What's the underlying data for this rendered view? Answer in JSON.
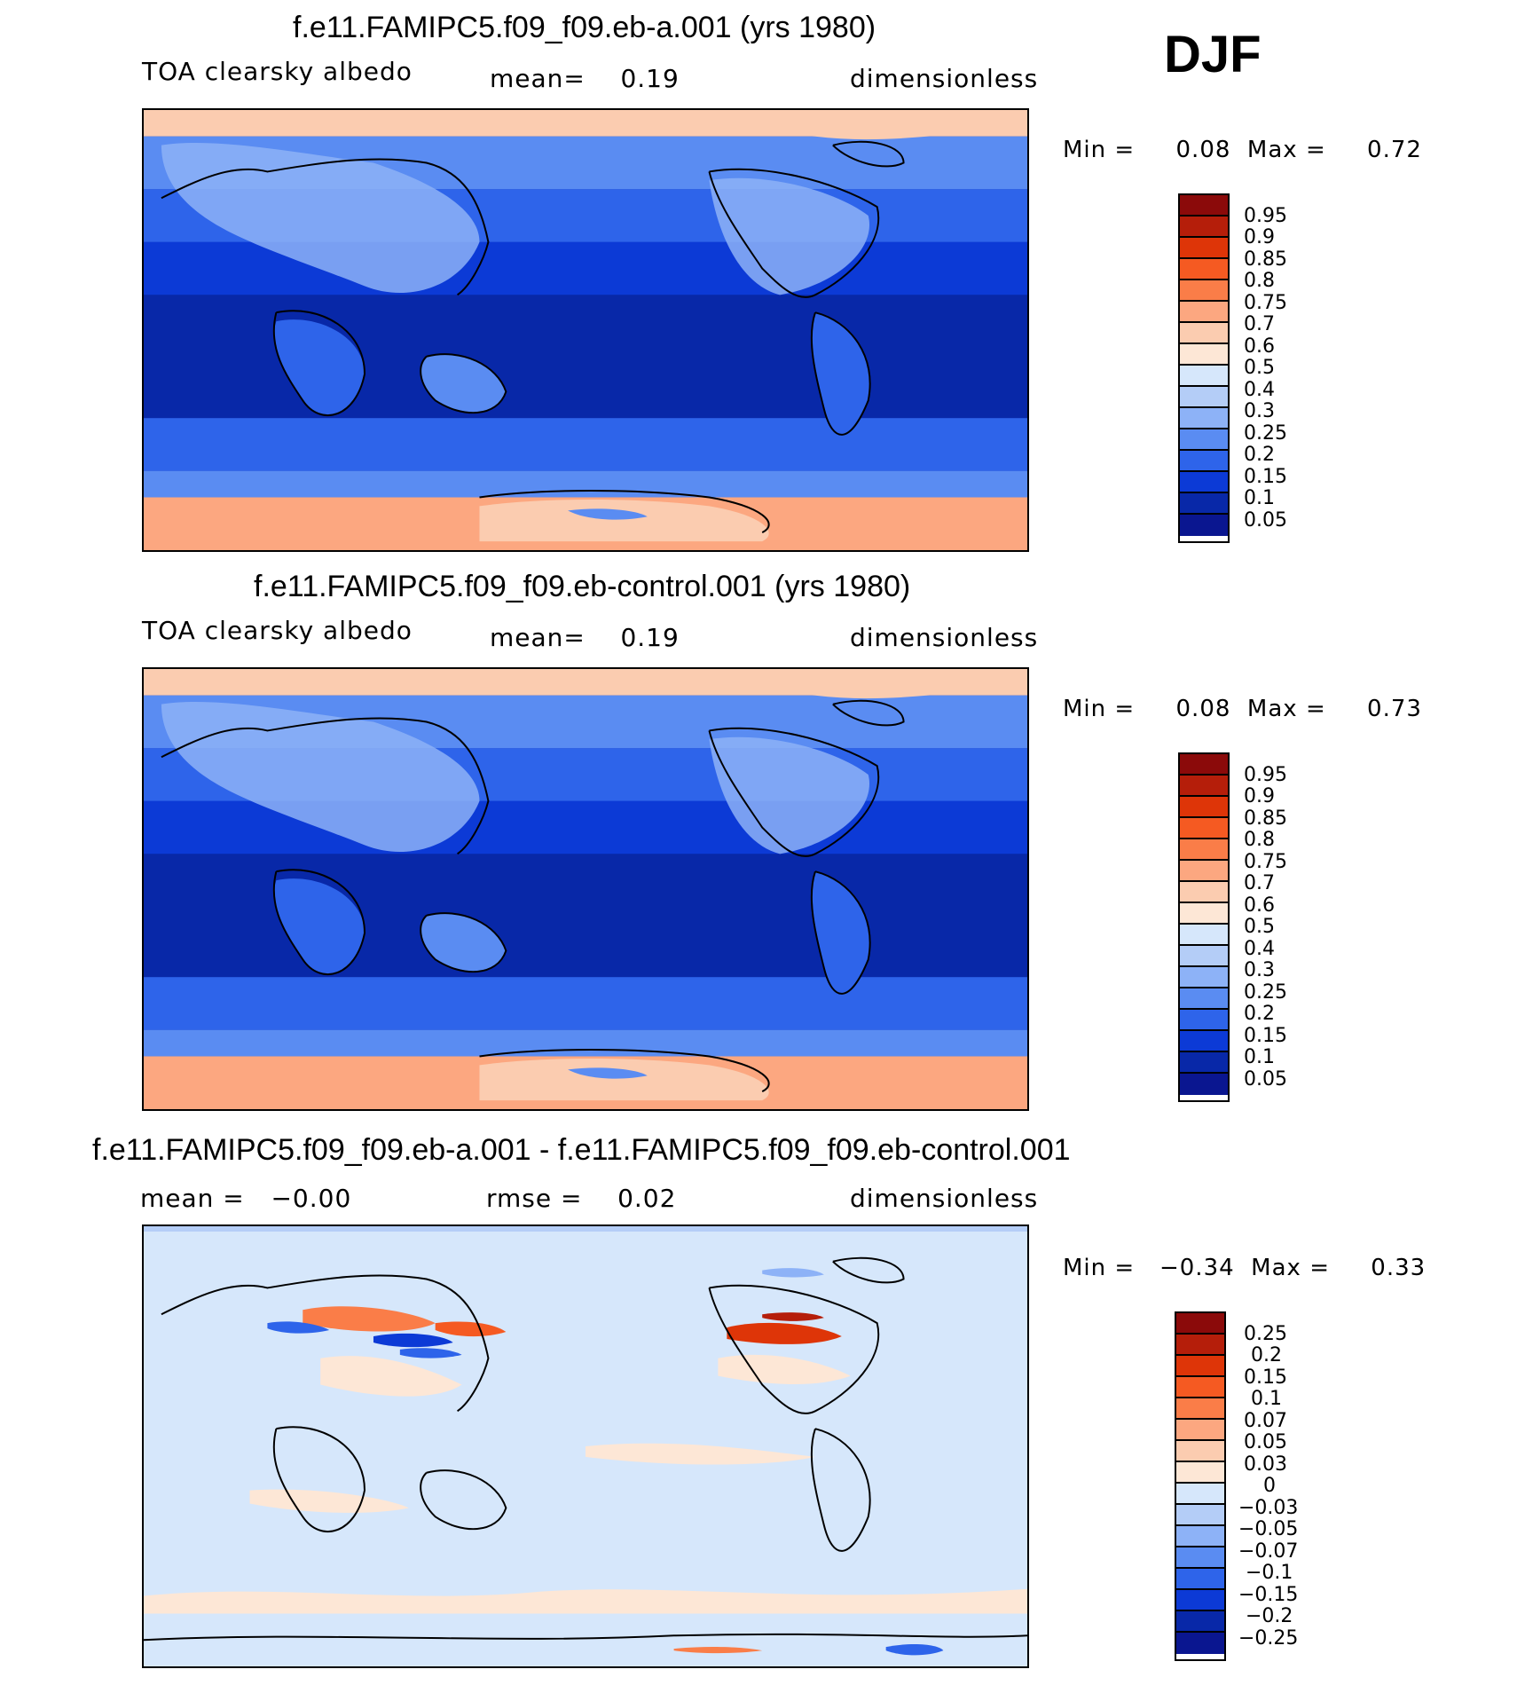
{
  "season": "DJF",
  "panels": [
    {
      "title": "f.e11.FAMIPC5.f09_f09.eb-a.001 (yrs 1980)",
      "left_label": "TOA clearsky albedo",
      "center_label": "mean=    0.19",
      "right_label": "dimensionless",
      "minmax": "Min =     0.08  Max =     0.72",
      "colorbar_ticks": [
        "0.95",
        "0.9",
        "0.85",
        "0.8",
        "0.75",
        "0.7",
        "0.6",
        "0.5",
        "0.4",
        "0.3",
        "0.25",
        "0.2",
        "0.15",
        "0.1",
        "0.05"
      ]
    },
    {
      "title": "f.e11.FAMIPC5.f09_f09.eb-control.001 (yrs 1980)",
      "left_label": "TOA clearsky albedo",
      "center_label": "mean=    0.19",
      "right_label": "dimensionless",
      "minmax": "Min =     0.08  Max =     0.73",
      "colorbar_ticks": [
        "0.95",
        "0.9",
        "0.85",
        "0.8",
        "0.75",
        "0.7",
        "0.6",
        "0.5",
        "0.4",
        "0.3",
        "0.25",
        "0.2",
        "0.15",
        "0.1",
        "0.05"
      ]
    },
    {
      "title": "f.e11.FAMIPC5.f09_f09.eb-a.001 - f.e11.FAMIPC5.f09_f09.eb-control.001",
      "left_label": "mean =   −0.00",
      "center_label": "rmse =    0.02",
      "right_label": "dimensionless",
      "minmax": "Min =   −0.34  Max =     0.33",
      "colorbar_ticks": [
        "0.25",
        "0.2",
        "0.15",
        "0.1",
        "0.07",
        "0.05",
        "0.03",
        "0",
        "−0.03",
        "−0.05",
        "−0.07",
        "−0.1",
        "−0.15",
        "−0.2",
        "−0.25"
      ]
    }
  ],
  "colors": {
    "abs_scale": [
      "#8b0a0a",
      "#b51e0a",
      "#de3508",
      "#f55a22",
      "#fa7d48",
      "#fca780",
      "#fbccb0",
      "#fde7d6",
      "#d6e7fb",
      "#b4cdf7",
      "#8db2f7",
      "#5a8cf2",
      "#2e64ea",
      "#0c3ad6",
      "#0828a8",
      "#0a1690"
    ],
    "anom_scale": [
      "#8b0a0a",
      "#b51e0a",
      "#de3508",
      "#f55a22",
      "#fa7d48",
      "#fca780",
      "#fbccb0",
      "#fde7d6",
      "#d6e7fb",
      "#b4cdf7",
      "#8db2f7",
      "#5a8cf2",
      "#2e64ea",
      "#0c3ad6",
      "#0828a8",
      "#0a1690"
    ]
  }
}
